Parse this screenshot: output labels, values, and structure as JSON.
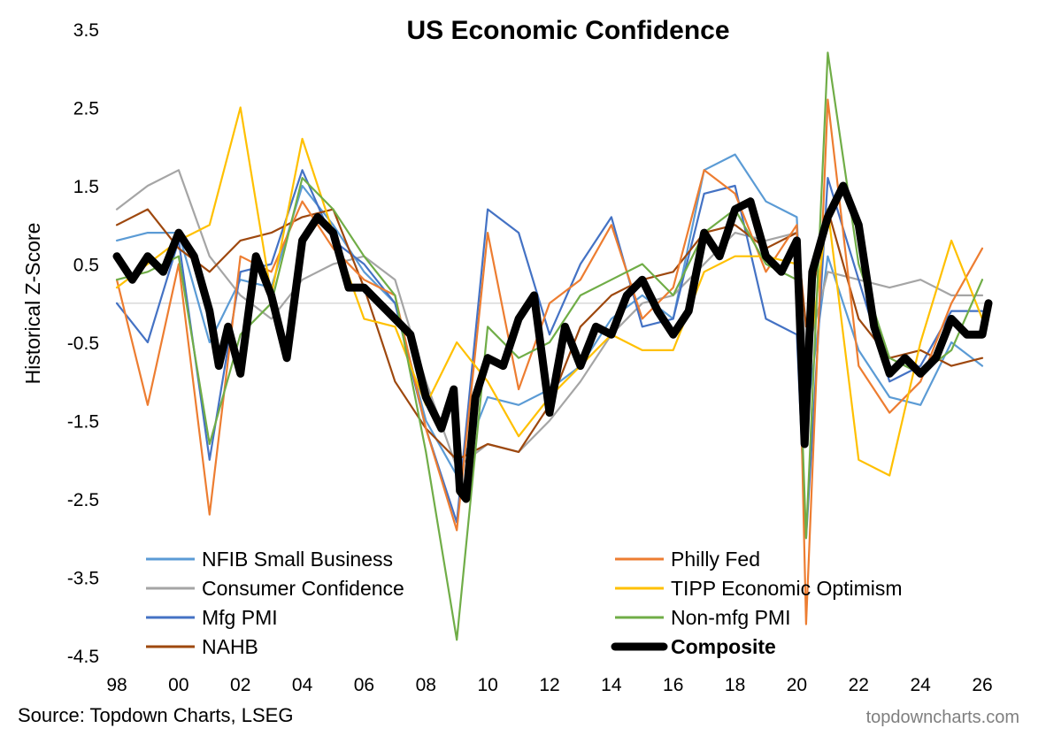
{
  "chart_data": {
    "type": "line",
    "title": "US Economic Confidence",
    "ylabel": "Historical Z-Score",
    "xlabel": "",
    "ylim": [
      -4.5,
      3.5
    ],
    "xlim": [
      1998,
      2026.2
    ],
    "yticks": [
      3.5,
      2.5,
      1.5,
      0.5,
      -0.5,
      -1.5,
      -2.5,
      -3.5,
      -4.5
    ],
    "xticks": [
      1998,
      2000,
      2002,
      2004,
      2006,
      2008,
      2010,
      2012,
      2014,
      2016,
      2018,
      2020,
      2022,
      2024,
      2026
    ],
    "xtick_labels": [
      "98",
      "00",
      "02",
      "04",
      "06",
      "08",
      "10",
      "12",
      "14",
      "16",
      "18",
      "20",
      "22",
      "24",
      "26"
    ],
    "zero_line": true,
    "grid": false,
    "legend_position": "bottom",
    "series": [
      {
        "name": "NFIB Small Business",
        "color": "#5b9bd5",
        "x": [
          1998,
          1999,
          2000,
          2001,
          2002,
          2003,
          2004,
          2005,
          2006,
          2007,
          2008,
          2009,
          2010,
          2011,
          2012,
          2013,
          2014,
          2015,
          2016,
          2017,
          2018,
          2019,
          2020,
          2020.3,
          2021,
          2022,
          2023,
          2024,
          2025,
          2026
        ],
        "y": [
          0.8,
          0.9,
          0.9,
          -0.5,
          0.3,
          0.2,
          1.5,
          1.0,
          0.4,
          0.0,
          -1.5,
          -2.2,
          -1.2,
          -1.3,
          -1.1,
          -0.8,
          -0.2,
          0.1,
          -0.2,
          1.7,
          1.9,
          1.3,
          1.1,
          -1.5,
          0.6,
          -0.6,
          -1.2,
          -1.3,
          -0.5,
          -0.8
        ]
      },
      {
        "name": "Consumer Confidence",
        "color": "#a5a5a5",
        "x": [
          1998,
          1999,
          2000,
          2001,
          2002,
          2003,
          2004,
          2005,
          2006,
          2007,
          2008,
          2009,
          2010,
          2011,
          2012,
          2013,
          2014,
          2015,
          2016,
          2017,
          2018,
          2019,
          2020,
          2020.3,
          2021,
          2022,
          2023,
          2024,
          2025,
          2026
        ],
        "y": [
          1.2,
          1.5,
          1.7,
          0.6,
          0.1,
          -0.2,
          0.3,
          0.5,
          0.6,
          0.3,
          -1.0,
          -2.1,
          -1.8,
          -1.9,
          -1.5,
          -1.0,
          -0.4,
          0.0,
          0.1,
          0.5,
          0.9,
          0.8,
          0.9,
          -0.7,
          0.4,
          0.3,
          0.2,
          0.3,
          0.1,
          0.1
        ]
      },
      {
        "name": "Mfg PMI",
        "color": "#4472c4",
        "x": [
          1998,
          1999,
          2000,
          2001,
          2002,
          2003,
          2004,
          2005,
          2006,
          2007,
          2008,
          2009,
          2010,
          2011,
          2012,
          2013,
          2014,
          2015,
          2016,
          2017,
          2018,
          2019,
          2020,
          2020.3,
          2021,
          2022,
          2023,
          2024,
          2025,
          2026
        ],
        "y": [
          0.0,
          -0.5,
          0.8,
          -2.0,
          0.4,
          0.5,
          1.7,
          0.8,
          0.5,
          0.0,
          -1.6,
          -2.8,
          1.2,
          0.9,
          -0.4,
          0.5,
          1.1,
          -0.3,
          -0.2,
          1.4,
          1.5,
          -0.2,
          -0.4,
          -3.0,
          1.6,
          0.3,
          -1.0,
          -0.8,
          -0.1,
          -0.1
        ]
      },
      {
        "name": "NAHB",
        "color": "#9e480e",
        "x": [
          1998,
          1999,
          2000,
          2001,
          2002,
          2003,
          2004,
          2005,
          2006,
          2007,
          2008,
          2009,
          2010,
          2011,
          2012,
          2013,
          2014,
          2015,
          2016,
          2017,
          2018,
          2019,
          2020,
          2020.3,
          2021,
          2022,
          2023,
          2024,
          2025,
          2026
        ],
        "y": [
          1.0,
          1.2,
          0.7,
          0.4,
          0.8,
          0.9,
          1.1,
          1.2,
          0.2,
          -1.0,
          -1.6,
          -2.0,
          -1.8,
          -1.9,
          -1.3,
          -0.3,
          0.1,
          0.3,
          0.4,
          0.9,
          1.0,
          0.7,
          0.9,
          -0.3,
          1.2,
          -0.2,
          -0.7,
          -0.6,
          -0.8,
          -0.7
        ]
      },
      {
        "name": "Philly Fed",
        "color": "#ed7d31",
        "x": [
          1998,
          1999,
          2000,
          2001,
          2002,
          2003,
          2004,
          2005,
          2006,
          2007,
          2008,
          2009,
          2010,
          2011,
          2012,
          2013,
          2014,
          2015,
          2016,
          2017,
          2018,
          2019,
          2020,
          2020.3,
          2021,
          2022,
          2023,
          2024,
          2025,
          2026
        ],
        "y": [
          0.3,
          -1.3,
          0.5,
          -2.7,
          0.6,
          0.4,
          1.3,
          0.7,
          0.3,
          0.1,
          -1.6,
          -2.9,
          0.9,
          -1.1,
          0.0,
          0.3,
          1.0,
          -0.2,
          0.2,
          1.7,
          1.4,
          0.4,
          1.0,
          -4.1,
          2.6,
          -0.8,
          -1.4,
          -1.0,
          0.0,
          0.7
        ]
      },
      {
        "name": "TIPP Economic Optimism",
        "color": "#ffc000",
        "x": [
          1998,
          1999,
          2000,
          2001,
          2002,
          2003,
          2004,
          2005,
          2006,
          2007,
          2008,
          2009,
          2010,
          2011,
          2012,
          2013,
          2014,
          2015,
          2016,
          2017,
          2018,
          2019,
          2020,
          2020.3,
          2021,
          2022,
          2023,
          2024,
          2025,
          2026
        ],
        "y": [
          0.2,
          0.5,
          0.8,
          1.0,
          2.5,
          0.1,
          2.1,
          0.9,
          -0.2,
          -0.3,
          -1.3,
          -0.5,
          -1.0,
          -1.7,
          -1.2,
          -0.8,
          -0.4,
          -0.6,
          -0.6,
          0.4,
          0.6,
          0.6,
          0.5,
          -1.0,
          1.2,
          -2.0,
          -2.2,
          -0.5,
          0.8,
          -0.2
        ]
      },
      {
        "name": "Non-mfg PMI",
        "color": "#70ad47",
        "x": [
          1998,
          1999,
          2000,
          2001,
          2002,
          2003,
          2004,
          2005,
          2006,
          2007,
          2008,
          2009,
          2010,
          2011,
          2012,
          2013,
          2014,
          2015,
          2016,
          2017,
          2018,
          2019,
          2020,
          2020.3,
          2021,
          2022,
          2023,
          2024,
          2025,
          2026
        ],
        "y": [
          0.3,
          0.4,
          0.6,
          -1.8,
          -0.4,
          0.0,
          1.6,
          1.2,
          0.6,
          0.1,
          -1.9,
          -4.3,
          -0.3,
          -0.7,
          -0.5,
          0.1,
          0.3,
          0.5,
          0.1,
          0.9,
          1.2,
          0.5,
          0.3,
          -3.0,
          3.2,
          0.5,
          -0.7,
          -0.9,
          -0.6,
          0.3
        ]
      },
      {
        "name": "Composite",
        "color": "#000000",
        "bold": true,
        "x": [
          1998,
          1998.5,
          1999,
          1999.5,
          2000,
          2000.5,
          2001,
          2001.3,
          2001.6,
          2002,
          2002.5,
          2003,
          2003.5,
          2004,
          2004.5,
          2005,
          2005.5,
          2006,
          2006.5,
          2007,
          2007.5,
          2008,
          2008.5,
          2008.9,
          2009.1,
          2009.3,
          2009.6,
          2010,
          2010.5,
          2011,
          2011.5,
          2012,
          2012.5,
          2013,
          2013.5,
          2014,
          2014.5,
          2015,
          2015.5,
          2016,
          2016.5,
          2017,
          2017.5,
          2018,
          2018.5,
          2019,
          2019.5,
          2020,
          2020.25,
          2020.5,
          2021,
          2021.5,
          2022,
          2022.5,
          2023,
          2023.5,
          2024,
          2024.5,
          2025,
          2025.5,
          2026,
          2026.2
        ],
        "y": [
          0.6,
          0.3,
          0.6,
          0.4,
          0.9,
          0.6,
          -0.1,
          -0.8,
          -0.3,
          -0.9,
          0.6,
          0.1,
          -0.7,
          0.8,
          1.1,
          0.9,
          0.2,
          0.2,
          0.0,
          -0.2,
          -0.4,
          -1.2,
          -1.6,
          -1.1,
          -2.4,
          -2.5,
          -1.2,
          -0.7,
          -0.8,
          -0.2,
          0.1,
          -1.4,
          -0.3,
          -0.8,
          -0.3,
          -0.4,
          0.1,
          0.3,
          -0.1,
          -0.4,
          -0.1,
          0.9,
          0.6,
          1.2,
          1.3,
          0.6,
          0.4,
          0.8,
          -1.8,
          0.4,
          1.1,
          1.5,
          1.0,
          -0.3,
          -0.9,
          -0.7,
          -0.9,
          -0.7,
          -0.2,
          -0.4,
          -0.4,
          0.0
        ]
      }
    ],
    "source": "Source: Topdown Charts, LSEG",
    "brand": "topdowncharts.com"
  }
}
